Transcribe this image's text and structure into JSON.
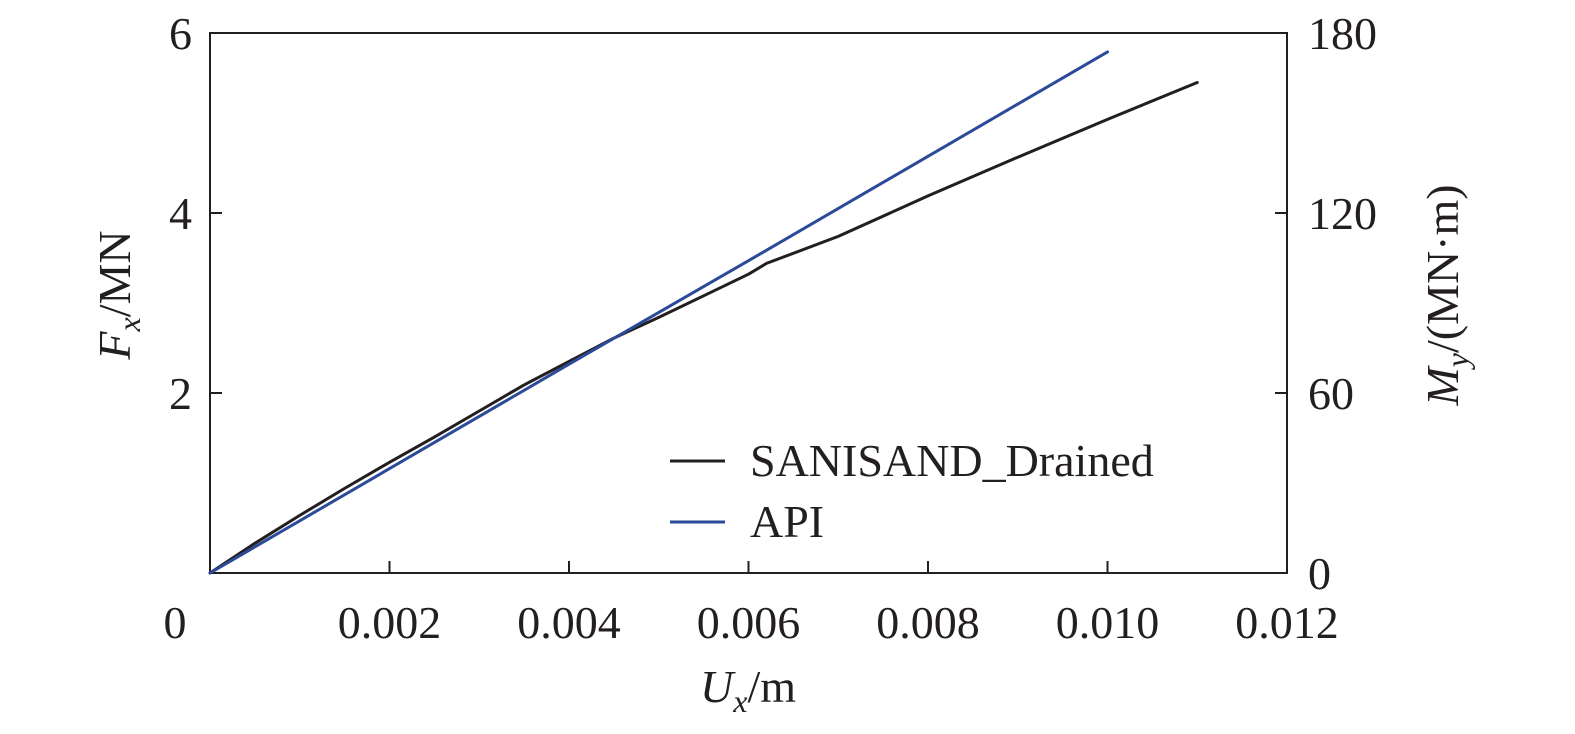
{
  "chart_data": {
    "type": "line",
    "title": "",
    "xlabel": {
      "main": "U",
      "sub": "x",
      "unit": "/m"
    },
    "ylabel_left": {
      "main": "F",
      "sub": "x",
      "unit": "/MN"
    },
    "ylabel_right": {
      "main": "M",
      "sub": "y",
      "unit": "/(MN·m)"
    },
    "xlim": [
      0,
      0.012
    ],
    "ylim_left": [
      0,
      6
    ],
    "ylim_right": [
      0,
      180
    ],
    "x_ticks": [
      0,
      0.002,
      0.004,
      0.006,
      0.008,
      0.01,
      0.012
    ],
    "x_tick_labels": [
      "0",
      "0.002",
      "0.004",
      "0.006",
      "0.008",
      "0.010",
      "0.012"
    ],
    "y_left_ticks": [
      2,
      4,
      6
    ],
    "y_left_tick_labels": [
      "2",
      "4",
      "6"
    ],
    "y_right_ticks": [
      0,
      60,
      120,
      180
    ],
    "y_right_tick_labels": [
      "0",
      "60",
      "120",
      "180"
    ],
    "grid": false,
    "legend_position": "bottom-right",
    "series": [
      {
        "name": "SANISAND_Drained",
        "color": "#231f20",
        "x": [
          0,
          0.0005,
          0.001,
          0.0015,
          0.002,
          0.0025,
          0.003,
          0.0035,
          0.004,
          0.0045,
          0.005,
          0.0055,
          0.006,
          0.0062,
          0.007,
          0.008,
          0.009,
          0.01,
          0.011
        ],
        "y": [
          0,
          0.33,
          0.64,
          0.94,
          1.23,
          1.51,
          1.8,
          2.09,
          2.35,
          2.61,
          2.84,
          3.08,
          3.32,
          3.44,
          3.74,
          4.19,
          4.62,
          5.04,
          5.45
        ]
      },
      {
        "name": "API",
        "color": "#2c4a9a",
        "x": [
          0,
          0.002,
          0.004,
          0.006,
          0.008,
          0.01
        ],
        "y": [
          0,
          1.16,
          2.32,
          3.47,
          4.63,
          5.79
        ]
      }
    ]
  }
}
